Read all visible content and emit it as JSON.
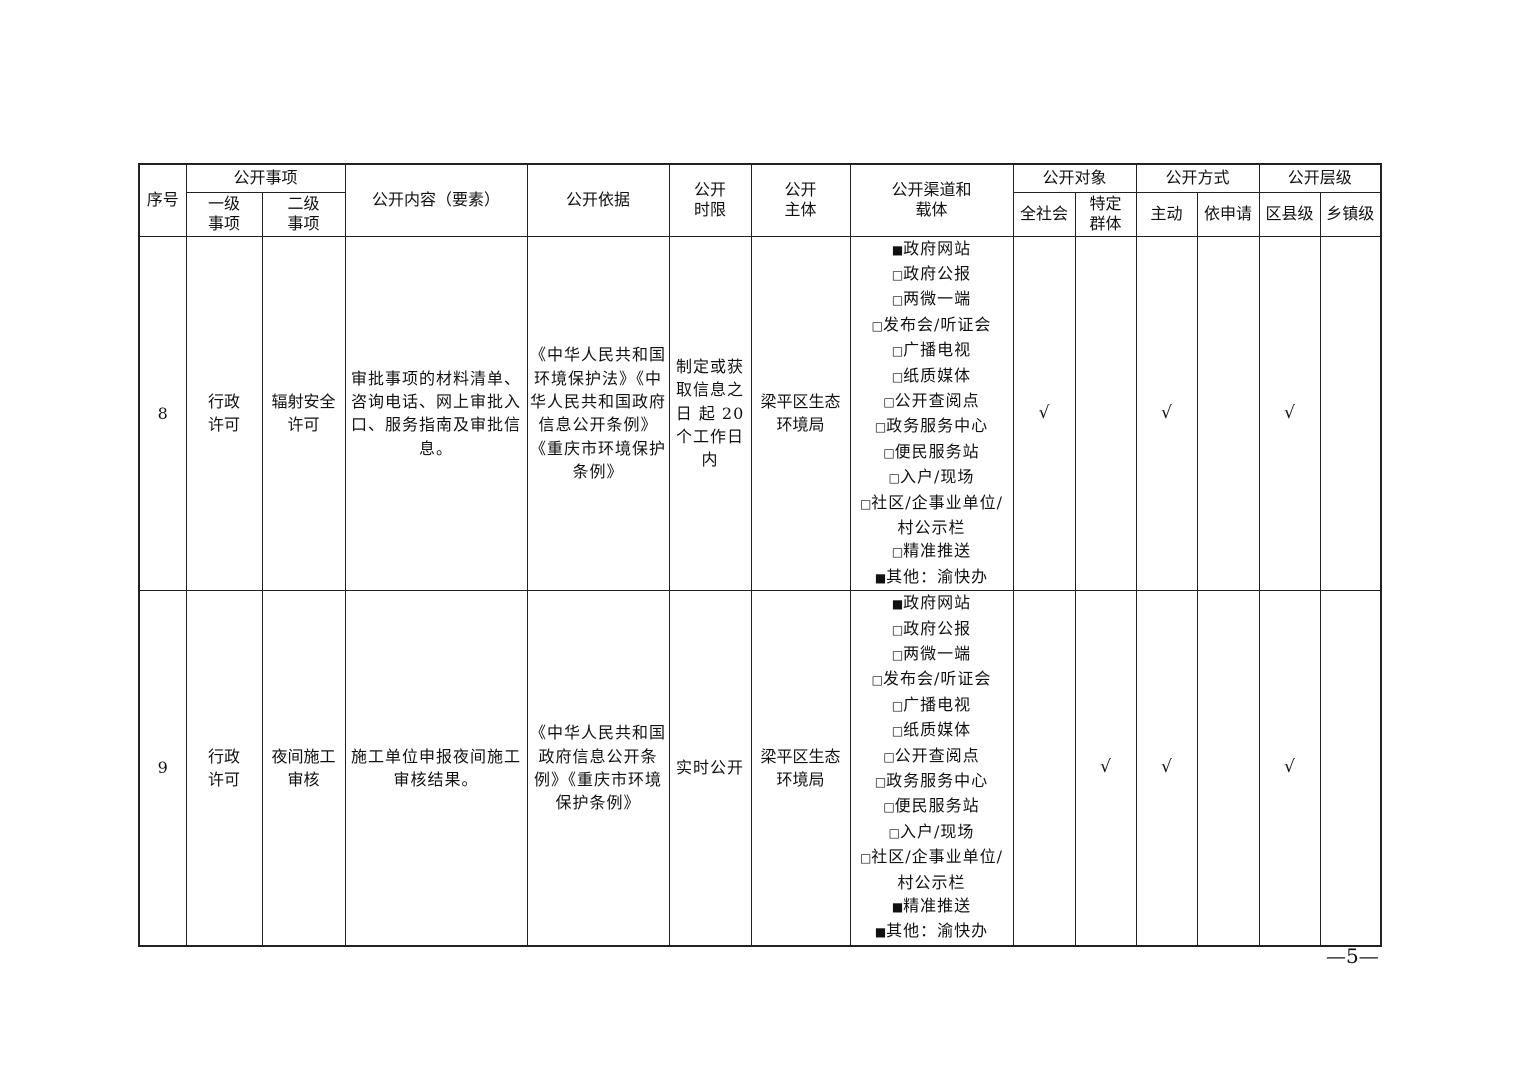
{
  "header": {
    "seq": "序号",
    "item_group": "公开事项",
    "level1": "一级\n事项",
    "level2": "二级\n事项",
    "content": "公开内容（要素）",
    "basis": "公开依据",
    "time_limit": "公开\n时限",
    "subject": "公开\n主体",
    "channels": "公开渠道和\n载体",
    "target_group": "公开对象",
    "target_all": "全社会",
    "target_specific": "特定\n群体",
    "method_group": "公开方式",
    "method_active": "主动",
    "method_request": "依申请",
    "level_group": "公开层级",
    "level_district": "区县级",
    "level_town": "乡镇级"
  },
  "rows": [
    {
      "seq": "8",
      "level1": "行政\n许可",
      "level2": "辐射安全\n许可",
      "content": "审批事项的材料清单、咨询电话、网上审批入口、服务指南及审批信息。",
      "basis": "《中华人民共和国环境保护法》《中华人民共和国政府信息公开条例》《重庆市环境保护条例》",
      "time_limit": "制定或获取信息之日 起 20 个工作日内",
      "subject": "梁平区生态\n环境局",
      "channels": [
        {
          "mark": "■",
          "label": "政府网站"
        },
        {
          "mark": "□",
          "label": "政府公报"
        },
        {
          "mark": "□",
          "label": "两微一端"
        },
        {
          "mark": "□",
          "label": "发布会/听证会"
        },
        {
          "mark": "□",
          "label": "广播电视"
        },
        {
          "mark": "□",
          "label": "纸质媒体"
        },
        {
          "mark": "□",
          "label": "公开查阅点"
        },
        {
          "mark": "□",
          "label": "政务服务中心"
        },
        {
          "mark": "□",
          "label": "便民服务站"
        },
        {
          "mark": "□",
          "label": "入户/现场"
        },
        {
          "mark": "□",
          "label": "社区/企事业单位/\n村公示栏"
        },
        {
          "mark": "□",
          "label": "精准推送"
        },
        {
          "mark": "■",
          "label": "其他：渝快办"
        }
      ],
      "target_all": "√",
      "target_specific": "",
      "method_active": "√",
      "method_request": "",
      "level_district": "√",
      "level_town": ""
    },
    {
      "seq": "9",
      "level1": "行政\n许可",
      "level2": "夜间施工\n审核",
      "content": "施工单位申报夜间施工审核结果。",
      "basis": "《中华人民共和国政府信息公开条例》《重庆市环境保护条例》",
      "time_limit": "实时公开",
      "subject": "梁平区生态\n环境局",
      "channels": [
        {
          "mark": "■",
          "label": "政府网站"
        },
        {
          "mark": "□",
          "label": "政府公报"
        },
        {
          "mark": "□",
          "label": "两微一端"
        },
        {
          "mark": "□",
          "label": "发布会/听证会"
        },
        {
          "mark": "□",
          "label": "广播电视"
        },
        {
          "mark": "□",
          "label": "纸质媒体"
        },
        {
          "mark": "□",
          "label": "公开查阅点"
        },
        {
          "mark": "□",
          "label": "政务服务中心"
        },
        {
          "mark": "□",
          "label": "便民服务站"
        },
        {
          "mark": "□",
          "label": "入户/现场"
        },
        {
          "mark": "□",
          "label": "社区/企事业单位/\n村公示栏"
        },
        {
          "mark": "■",
          "label": "精准推送"
        },
        {
          "mark": "■",
          "label": "其他：渝快办"
        }
      ],
      "target_all": "",
      "target_specific": "√",
      "method_active": "√",
      "method_request": "",
      "level_district": "√",
      "level_town": ""
    }
  ],
  "page_number": "—5—"
}
